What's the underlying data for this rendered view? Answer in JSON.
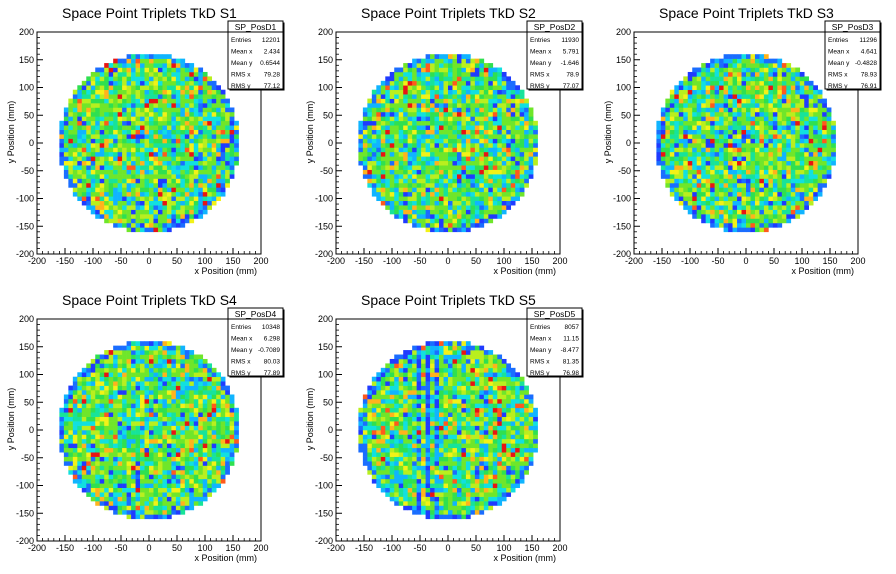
{
  "figure": {
    "background": "#ffffff",
    "palette": [
      "#3a1fd6",
      "#1f3bff",
      "#1a6dff",
      "#10b4ff",
      "#11e0e0",
      "#17e39a",
      "#2fe050",
      "#6fe62a",
      "#b9ef1e",
      "#f2f217",
      "#ffb31c",
      "#ff5a1c",
      "#e81414"
    ]
  },
  "chart_data": [
    {
      "type": "heatmap",
      "title": "Space Point Triplets TkD S1",
      "xlabel": "x Position (mm)",
      "ylabel": "y Position (mm)",
      "xlim": [
        -200,
        200
      ],
      "ylim": [
        -200,
        200
      ],
      "xticks": [
        -200,
        -150,
        -100,
        -50,
        0,
        50,
        100,
        150,
        200
      ],
      "yticks": [
        -200,
        -150,
        -100,
        -50,
        0,
        50,
        100,
        150,
        200
      ],
      "fill_region": {
        "shape": "disk",
        "center": [
          0,
          0
        ],
        "radius_mm": 160
      },
      "stats": {
        "name": "SP_PosD1",
        "rows": [
          [
            "Entries",
            "12201"
          ],
          [
            "Mean x",
            "2.434"
          ],
          [
            "Mean y",
            "0.6544"
          ],
          [
            "RMS x",
            "79.28"
          ],
          [
            "RMS y",
            "77.12"
          ]
        ]
      }
    },
    {
      "type": "heatmap",
      "title": "Space Point Triplets TkD S2",
      "xlabel": "x Position (mm)",
      "ylabel": "y Position (mm)",
      "xlim": [
        -200,
        200
      ],
      "ylim": [
        -200,
        200
      ],
      "xticks": [
        -200,
        -150,
        -100,
        -50,
        0,
        50,
        100,
        150,
        200
      ],
      "yticks": [
        -200,
        -150,
        -100,
        -50,
        0,
        50,
        100,
        150,
        200
      ],
      "fill_region": {
        "shape": "disk",
        "center": [
          0,
          0
        ],
        "radius_mm": 160
      },
      "stats": {
        "name": "SP_PosD2",
        "rows": [
          [
            "Entries",
            "11930"
          ],
          [
            "Mean x",
            "5.791"
          ],
          [
            "Mean y",
            "-1.646"
          ],
          [
            "RMS x",
            "78.9"
          ],
          [
            "RMS y",
            "77.07"
          ]
        ]
      }
    },
    {
      "type": "heatmap",
      "title": "Space Point Triplets TkD S3",
      "xlabel": "x Position (mm)",
      "ylabel": "y Position (mm)",
      "xlim": [
        -200,
        200
      ],
      "ylim": [
        -200,
        200
      ],
      "xticks": [
        -200,
        -150,
        -100,
        -50,
        0,
        50,
        100,
        150,
        200
      ],
      "yticks": [
        -200,
        -150,
        -100,
        -50,
        0,
        50,
        100,
        150,
        200
      ],
      "fill_region": {
        "shape": "disk",
        "center": [
          0,
          0
        ],
        "radius_mm": 160
      },
      "stats": {
        "name": "SP_PosD3",
        "rows": [
          [
            "Entries",
            "11296"
          ],
          [
            "Mean x",
            "4.641"
          ],
          [
            "Mean y",
            "-0.4828"
          ],
          [
            "RMS x",
            "78.93"
          ],
          [
            "RMS y",
            "76.91"
          ]
        ]
      }
    },
    {
      "type": "heatmap",
      "title": "Space Point Triplets TkD S4",
      "xlabel": "x Position (mm)",
      "ylabel": "y Position (mm)",
      "xlim": [
        -200,
        200
      ],
      "ylim": [
        -200,
        200
      ],
      "xticks": [
        -200,
        -150,
        -100,
        -50,
        0,
        50,
        100,
        150,
        200
      ],
      "yticks": [
        -200,
        -150,
        -100,
        -50,
        0,
        50,
        100,
        150,
        200
      ],
      "fill_region": {
        "shape": "disk",
        "center": [
          0,
          0
        ],
        "radius_mm": 160
      },
      "stats": {
        "name": "SP_PosD4",
        "rows": [
          [
            "Entries",
            "10348"
          ],
          [
            "Mean x",
            "6.298"
          ],
          [
            "Mean y",
            "-0.7089"
          ],
          [
            "RMS x",
            "80.03"
          ],
          [
            "RMS y",
            "77.89"
          ]
        ]
      }
    },
    {
      "type": "heatmap",
      "title": "Space Point Triplets TkD S5",
      "xlabel": "x Position (mm)",
      "ylabel": "y Position (mm)",
      "xlim": [
        -200,
        200
      ],
      "ylim": [
        -200,
        200
      ],
      "xticks": [
        -200,
        -150,
        -100,
        -50,
        0,
        50,
        100,
        150,
        200
      ],
      "yticks": [
        -200,
        -150,
        -100,
        -50,
        0,
        50,
        100,
        150,
        200
      ],
      "fill_region": {
        "shape": "disk",
        "center": [
          0,
          0
        ],
        "radius_mm": 160
      },
      "stats": {
        "name": "SP_PosD5",
        "rows": [
          [
            "Entries",
            "8057"
          ],
          [
            "Mean x",
            "11.15"
          ],
          [
            "Mean y",
            "-8.477"
          ],
          [
            "RMS x",
            "81.35"
          ],
          [
            "RMS y",
            "76.98"
          ]
        ]
      }
    }
  ]
}
